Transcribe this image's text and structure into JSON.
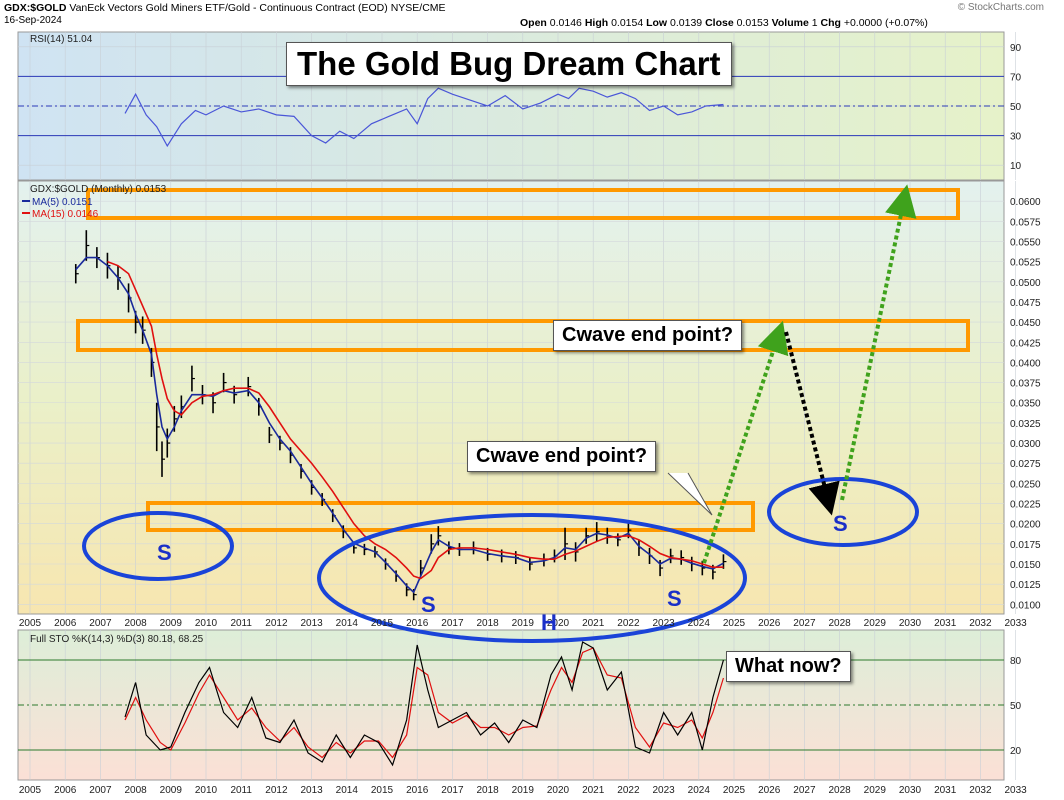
{
  "header": {
    "symbol": "GDX:$GOLD",
    "description": "VanEck Vectors Gold Miners ETF/Gold - Continuous Contract (EOD)",
    "exchange": "NYSE/CME",
    "date": "16-Sep-2024",
    "copyright": "© StockCharts.com",
    "open_label": "Open",
    "open": "0.0146",
    "high_label": "High",
    "high": "0.0154",
    "low_label": "Low",
    "low": "0.0139",
    "close_label": "Close",
    "close": "0.0153",
    "volume_label": "Volume",
    "volume": "1",
    "chg_label": "Chg",
    "chg": "+0.0000 (+0.07%)"
  },
  "annotations": {
    "title": "The Gold Bug Dream Chart",
    "cwave_upper": "Cwave end point?",
    "cwave_lower": "Cwave end point?",
    "what_now": "What now?",
    "s_left": "S",
    "s_center_left": "S",
    "head": "H",
    "s_center_right": "S",
    "s_future": "S"
  },
  "colors": {
    "rsi_line": "#4a56d8",
    "price_bars": "#000000",
    "ma5": "#1a2a9c",
    "ma15": "#e01010",
    "sto_k": "#000000",
    "sto_d": "#e01010",
    "zone_box": "#ff9900",
    "ellipse": "#1a44d8",
    "arrow_green": "#3fa21c",
    "arrow_black": "#000000",
    "rsi_band": "#2b39b8",
    "sto_band": "#2c7a2c"
  },
  "chart_data": [
    {
      "type": "line",
      "name": "RSI",
      "legend": "RSI(14) 51.04",
      "y_ticks": [
        "90",
        "70",
        "50",
        "30",
        "10"
      ],
      "ylim": [
        0,
        100
      ],
      "reference_lines": [
        70,
        50,
        30
      ],
      "x": [
        2007.7,
        2008.0,
        2008.3,
        2008.6,
        2008.9,
        2009.3,
        2009.7,
        2010.0,
        2010.5,
        2011.0,
        2011.5,
        2012.0,
        2012.5,
        2013.0,
        2013.4,
        2013.8,
        2014.2,
        2014.7,
        2015.2,
        2015.7,
        2016.0,
        2016.3,
        2016.6,
        2017.0,
        2017.5,
        2018.0,
        2018.5,
        2019.0,
        2019.5,
        2020.0,
        2020.3,
        2020.6,
        2021.0,
        2021.4,
        2021.8,
        2022.2,
        2022.6,
        2023.0,
        2023.4,
        2023.8,
        2024.2,
        2024.7
      ],
      "y": [
        45,
        58,
        44,
        36,
        23,
        38,
        47,
        44,
        50,
        46,
        48,
        44,
        43,
        30,
        25,
        33,
        28,
        38,
        43,
        48,
        38,
        55,
        62,
        58,
        54,
        50,
        57,
        48,
        52,
        58,
        55,
        62,
        60,
        56,
        59,
        55,
        47,
        50,
        44,
        46,
        50,
        51
      ]
    },
    {
      "type": "line",
      "name": "GDX:$GOLD",
      "legend": [
        "GDX:$GOLD (Monthly) 0.0153",
        "MA(5) 0.0151",
        "MA(15) 0.0146"
      ],
      "x_ticks": [
        "2005",
        "2006",
        "2007",
        "2008",
        "2009",
        "2010",
        "2011",
        "2012",
        "2013",
        "2014",
        "2015",
        "2016",
        "2017",
        "2018",
        "2019",
        "2020",
        "2021",
        "2022",
        "2023",
        "2024",
        "2025",
        "2026",
        "2027",
        "2028",
        "2029",
        "2030",
        "2031",
        "2032",
        "2033"
      ],
      "y_ticks": [
        "0.0600",
        "0.0575",
        "0.0550",
        "0.0525",
        "0.0500",
        "0.0475",
        "0.0450",
        "0.0425",
        "0.0400",
        "0.0375",
        "0.0350",
        "0.0325",
        "0.0300",
        "0.0275",
        "0.0250",
        "0.0225",
        "0.0200",
        "0.0175",
        "0.0150",
        "0.0125",
        "0.0100"
      ],
      "ylim": [
        0.0088,
        0.0625
      ],
      "xlim": [
        2005,
        2033
      ],
      "x": [
        2006.3,
        2006.6,
        2006.9,
        2007.2,
        2007.5,
        2007.8,
        2008.0,
        2008.2,
        2008.45,
        2008.6,
        2008.75,
        2008.9,
        2009.1,
        2009.3,
        2009.6,
        2009.9,
        2010.2,
        2010.5,
        2010.8,
        2011.2,
        2011.5,
        2011.8,
        2012.1,
        2012.4,
        2012.7,
        2013.0,
        2013.3,
        2013.6,
        2013.9,
        2014.2,
        2014.5,
        2014.8,
        2015.1,
        2015.4,
        2015.7,
        2015.9,
        2016.1,
        2016.4,
        2016.6,
        2016.9,
        2017.2,
        2017.6,
        2018.0,
        2018.4,
        2018.8,
        2019.2,
        2019.6,
        2019.9,
        2020.2,
        2020.5,
        2020.8,
        2021.1,
        2021.4,
        2021.7,
        2022.0,
        2022.3,
        2022.6,
        2022.9,
        2023.2,
        2023.5,
        2023.8,
        2024.1,
        2024.4,
        2024.7
      ],
      "y": [
        0.051,
        0.0545,
        0.053,
        0.052,
        0.0505,
        0.048,
        0.045,
        0.044,
        0.04,
        0.032,
        0.028,
        0.03,
        0.033,
        0.0345,
        0.038,
        0.036,
        0.035,
        0.0375,
        0.036,
        0.037,
        0.0345,
        0.031,
        0.03,
        0.0285,
        0.0265,
        0.0245,
        0.023,
        0.021,
        0.019,
        0.017,
        0.0168,
        0.0165,
        0.015,
        0.0135,
        0.0118,
        0.0112,
        0.0145,
        0.0175,
        0.0185,
        0.017,
        0.0168,
        0.017,
        0.0162,
        0.016,
        0.0158,
        0.015,
        0.0155,
        0.016,
        0.0175,
        0.0165,
        0.0185,
        0.019,
        0.0185,
        0.018,
        0.0192,
        0.017,
        0.016,
        0.0145,
        0.016,
        0.0158,
        0.015,
        0.0145,
        0.014,
        0.0153
      ],
      "bar_range": [
        0.0012,
        0.0019,
        0.0013,
        0.0016,
        0.0015,
        0.0018,
        0.0014,
        0.0017,
        0.0018,
        0.003,
        0.0022,
        0.0018,
        0.0016,
        0.0014,
        0.0016,
        0.0012,
        0.0013,
        0.0012,
        0.0011,
        0.0012,
        0.0011,
        0.001,
        0.0009,
        0.001,
        0.0009,
        0.0009,
        0.0008,
        0.0008,
        0.0008,
        0.0007,
        0.0007,
        0.0007,
        0.0007,
        0.0007,
        0.0008,
        0.0007,
        0.001,
        0.0012,
        0.0012,
        0.0008,
        0.0008,
        0.0008,
        0.0008,
        0.0008,
        0.0008,
        0.0008,
        0.0008,
        0.0008,
        0.002,
        0.0012,
        0.001,
        0.0012,
        0.001,
        0.0008,
        0.001,
        0.001,
        0.001,
        0.001,
        0.0009,
        0.0009,
        0.0009,
        0.0009,
        0.0009,
        0.0009
      ],
      "ma5": [
        0.0515,
        0.053,
        0.053,
        0.052,
        0.0505,
        0.0485,
        0.046,
        0.044,
        0.041,
        0.036,
        0.032,
        0.0305,
        0.032,
        0.034,
        0.036,
        0.036,
        0.0358,
        0.0365,
        0.0362,
        0.0365,
        0.035,
        0.0325,
        0.0305,
        0.029,
        0.027,
        0.025,
        0.0232,
        0.0213,
        0.0193,
        0.0176,
        0.017,
        0.0165,
        0.0152,
        0.0138,
        0.0123,
        0.0115,
        0.0135,
        0.0165,
        0.018,
        0.0172,
        0.0168,
        0.0168,
        0.0163,
        0.016,
        0.0158,
        0.0152,
        0.0154,
        0.0158,
        0.017,
        0.0168,
        0.0182,
        0.0188,
        0.0186,
        0.0182,
        0.0188,
        0.0172,
        0.0162,
        0.015,
        0.0157,
        0.0156,
        0.0151,
        0.0147,
        0.0144,
        0.0151
      ],
      "ma15": [
        null,
        null,
        null,
        0.0525,
        0.052,
        0.051,
        0.049,
        0.047,
        0.0445,
        0.041,
        0.038,
        0.0355,
        0.034,
        0.0335,
        0.035,
        0.0358,
        0.036,
        0.0365,
        0.0368,
        0.0368,
        0.0362,
        0.0345,
        0.0325,
        0.0305,
        0.029,
        0.0275,
        0.0258,
        0.024,
        0.022,
        0.02,
        0.0185,
        0.0175,
        0.0168,
        0.0158,
        0.0145,
        0.0135,
        0.0132,
        0.0142,
        0.0158,
        0.0168,
        0.017,
        0.017,
        0.0168,
        0.0165,
        0.0162,
        0.0158,
        0.0156,
        0.0156,
        0.0162,
        0.0166,
        0.0172,
        0.0178,
        0.0183,
        0.0184,
        0.0185,
        0.018,
        0.0172,
        0.0163,
        0.0158,
        0.0156,
        0.0154,
        0.015,
        0.0146,
        0.0146
      ]
    },
    {
      "type": "line",
      "name": "Full STO",
      "legend": "Full STO %K(14,3) %D(3) 80.18, 68.25",
      "y_ticks": [
        "80",
        "50",
        "20"
      ],
      "ylim": [
        0,
        100
      ],
      "reference_lines": [
        80,
        50,
        20
      ],
      "x_ticks": [
        "2005",
        "2006",
        "2007",
        "2008",
        "2009",
        "2010",
        "2011",
        "2012",
        "2013",
        "2014",
        "2015",
        "2016",
        "2017",
        "2018",
        "2019",
        "2020",
        "2021",
        "2022",
        "2023",
        "2024",
        "2025",
        "2026",
        "2027",
        "2028",
        "2029",
        "2030",
        "2031",
        "2032",
        "2033"
      ],
      "x": [
        2007.7,
        2008.0,
        2008.3,
        2008.7,
        2009.0,
        2009.4,
        2009.8,
        2010.1,
        2010.5,
        2010.9,
        2011.3,
        2011.7,
        2012.1,
        2012.5,
        2012.9,
        2013.3,
        2013.7,
        2014.1,
        2014.5,
        2014.9,
        2015.3,
        2015.7,
        2016.0,
        2016.3,
        2016.6,
        2017.0,
        2017.4,
        2017.8,
        2018.2,
        2018.6,
        2019.0,
        2019.4,
        2019.8,
        2020.1,
        2020.4,
        2020.7,
        2021.0,
        2021.4,
        2021.8,
        2022.2,
        2022.6,
        2023.0,
        2023.4,
        2023.8,
        2024.1,
        2024.4,
        2024.7
      ],
      "k": [
        42,
        65,
        30,
        20,
        22,
        45,
        65,
        75,
        45,
        35,
        55,
        28,
        25,
        40,
        18,
        12,
        30,
        15,
        30,
        25,
        10,
        40,
        90,
        60,
        35,
        40,
        45,
        30,
        38,
        25,
        40,
        35,
        70,
        82,
        60,
        92,
        88,
        60,
        72,
        22,
        18,
        45,
        30,
        45,
        20,
        55,
        80
      ],
      "d": [
        40,
        55,
        40,
        25,
        20,
        38,
        58,
        70,
        55,
        40,
        48,
        35,
        26,
        35,
        22,
        15,
        25,
        18,
        26,
        26,
        15,
        30,
        75,
        70,
        45,
        38,
        43,
        35,
        35,
        30,
        35,
        36,
        60,
        75,
        65,
        85,
        88,
        70,
        68,
        35,
        22,
        38,
        35,
        40,
        28,
        45,
        68
      ]
    }
  ]
}
